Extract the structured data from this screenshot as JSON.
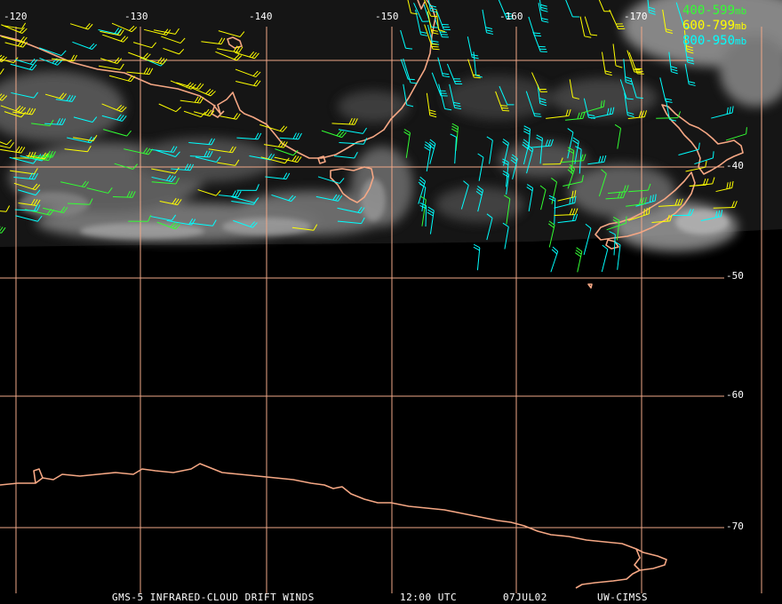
{
  "map": {
    "grid_color": "#f0a888",
    "coast_color": "#f5a784",
    "lon_labels": [
      "-120",
      "-130",
      "-140",
      "-150",
      "-160",
      "-170"
    ],
    "lat_labels": [
      "-40",
      "-50",
      "-60",
      "-70"
    ]
  },
  "legend": [
    {
      "range": "400-599",
      "unit": "mb",
      "color": "#33ff33"
    },
    {
      "range": "600-799",
      "unit": "mb",
      "color": "#ffff00"
    },
    {
      "range": "800-950",
      "unit": "mb",
      "color": "#00ffff"
    }
  ],
  "footer": {
    "product": "GMS-5 INFRARED-CLOUD DRIFT WINDS",
    "time": "12:00 UTC",
    "date": "07JUL02",
    "source": "UW-CIMSS"
  }
}
